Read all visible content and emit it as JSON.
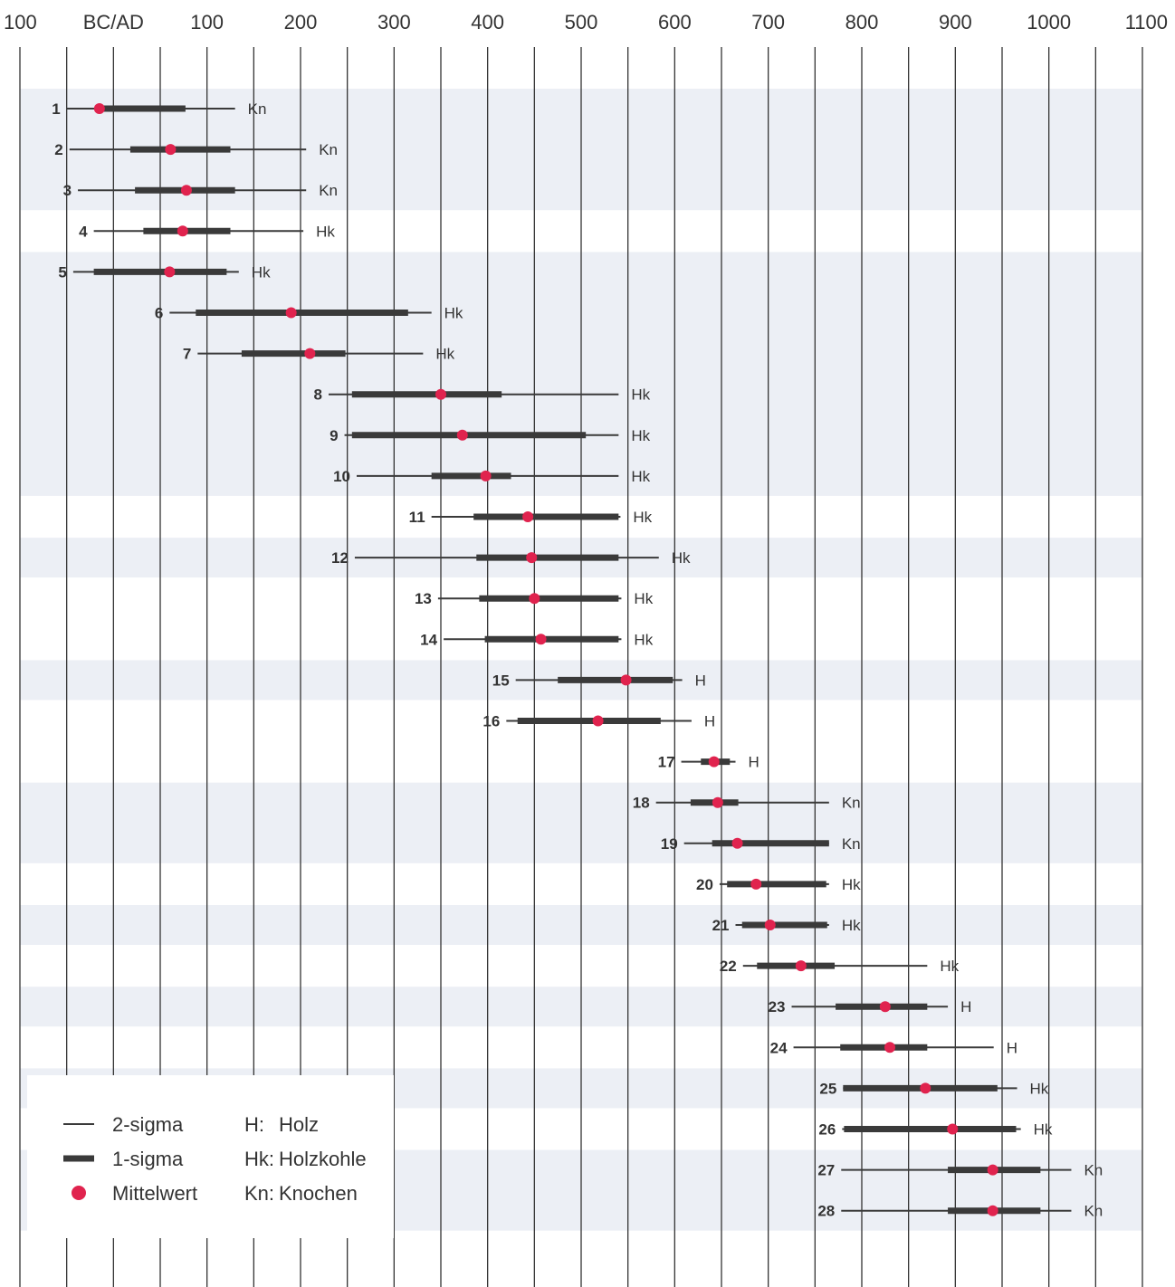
{
  "chart_data": {
    "type": "range",
    "axis": {
      "tick_labels": [
        "100",
        "BC/AD",
        "100",
        "200",
        "300",
        "400",
        "500",
        "600",
        "700",
        "800",
        "900",
        "1000",
        "1100"
      ],
      "tick_values": [
        -100,
        0,
        100,
        200,
        300,
        400,
        500,
        600,
        700,
        800,
        900,
        1000,
        1100
      ],
      "range": [
        -100,
        1100
      ],
      "grid_minor_step": 50
    },
    "colors": {
      "band": "#eceff5",
      "grid": "#333333",
      "range_bar": "#3a3a3a",
      "mean_dot": "#e0234e"
    },
    "rows": [
      {
        "id": "1",
        "sigma2": [
          -50,
          130
        ],
        "sigma1": [
          -12,
          77
        ],
        "mean": -15,
        "material": "Kn"
      },
      {
        "id": "2",
        "sigma2": [
          -47,
          206
        ],
        "sigma1": [
          18,
          125
        ],
        "mean": 61,
        "material": "Kn"
      },
      {
        "id": "3",
        "sigma2": [
          -38,
          206
        ],
        "sigma1": [
          23,
          130
        ],
        "mean": 78,
        "material": "Kn"
      },
      {
        "id": "4",
        "sigma2": [
          -21,
          203
        ],
        "sigma1": [
          32,
          125
        ],
        "mean": 74,
        "material": "Hk"
      },
      {
        "id": "5",
        "sigma2": [
          -43,
          134
        ],
        "sigma1": [
          -21,
          121
        ],
        "mean": 60,
        "material": "Hk"
      },
      {
        "id": "6",
        "sigma2": [
          60,
          340
        ],
        "sigma1": [
          88,
          315
        ],
        "mean": 190,
        "material": "Hk"
      },
      {
        "id": "7",
        "sigma2": [
          90,
          331
        ],
        "sigma1": [
          137,
          248
        ],
        "mean": 210,
        "material": "Hk"
      },
      {
        "id": "8",
        "sigma2": [
          230,
          540
        ],
        "sigma1": [
          255,
          415
        ],
        "mean": 350,
        "material": "Hk"
      },
      {
        "id": "9",
        "sigma2": [
          247,
          540
        ],
        "sigma1": [
          255,
          505
        ],
        "mean": 373,
        "material": "Hk"
      },
      {
        "id": "10",
        "sigma2": [
          260,
          540
        ],
        "sigma1": [
          340,
          425
        ],
        "mean": 398,
        "material": "Hk"
      },
      {
        "id": "11",
        "sigma2": [
          340,
          542
        ],
        "sigma1": [
          385,
          540
        ],
        "mean": 443,
        "material": "Hk"
      },
      {
        "id": "12",
        "sigma2": [
          258,
          583
        ],
        "sigma1": [
          388,
          540
        ],
        "mean": 447,
        "material": "Hk"
      },
      {
        "id": "13",
        "sigma2": [
          347,
          543
        ],
        "sigma1": [
          391,
          540
        ],
        "mean": 450,
        "material": "Hk"
      },
      {
        "id": "14",
        "sigma2": [
          353,
          543
        ],
        "sigma1": [
          397,
          540
        ],
        "mean": 457,
        "material": "Hk"
      },
      {
        "id": "15",
        "sigma2": [
          430,
          608
        ],
        "sigma1": [
          475,
          598
        ],
        "mean": 548,
        "material": "H"
      },
      {
        "id": "16",
        "sigma2": [
          420,
          618
        ],
        "sigma1": [
          432,
          585
        ],
        "mean": 518,
        "material": "H"
      },
      {
        "id": "17",
        "sigma2": [
          607,
          665
        ],
        "sigma1": [
          628,
          659
        ],
        "mean": 642,
        "material": "H"
      },
      {
        "id": "18",
        "sigma2": [
          580,
          765
        ],
        "sigma1": [
          617,
          668
        ],
        "mean": 646,
        "material": "Kn"
      },
      {
        "id": "19",
        "sigma2": [
          610,
          765
        ],
        "sigma1": [
          640,
          765
        ],
        "mean": 667,
        "material": "Kn"
      },
      {
        "id": "20",
        "sigma2": [
          648,
          765
        ],
        "sigma1": [
          656,
          762
        ],
        "mean": 687,
        "material": "Hk"
      },
      {
        "id": "21",
        "sigma2": [
          665,
          765
        ],
        "sigma1": [
          672,
          763
        ],
        "mean": 702,
        "material": "Hk"
      },
      {
        "id": "22",
        "sigma2": [
          673,
          870
        ],
        "sigma1": [
          688,
          771
        ],
        "mean": 735,
        "material": "Hk"
      },
      {
        "id": "23",
        "sigma2": [
          725,
          892
        ],
        "sigma1": [
          772,
          870
        ],
        "mean": 825,
        "material": "H"
      },
      {
        "id": "24",
        "sigma2": [
          727,
          941
        ],
        "sigma1": [
          777,
          870
        ],
        "mean": 830,
        "material": "H"
      },
      {
        "id": "25",
        "sigma2": [
          780,
          966
        ],
        "sigma1": [
          780,
          945
        ],
        "mean": 868,
        "material": "Hk"
      },
      {
        "id": "26",
        "sigma2": [
          779,
          970
        ],
        "sigma1": [
          781,
          965
        ],
        "mean": 897,
        "material": "Hk"
      },
      {
        "id": "27",
        "sigma2": [
          778,
          1024
        ],
        "sigma1": [
          892,
          991
        ],
        "mean": 940,
        "material": "Kn"
      },
      {
        "id": "28",
        "sigma2": [
          778,
          1024
        ],
        "sigma1": [
          892,
          991
        ],
        "mean": 940,
        "material": "Kn"
      }
    ],
    "legend": {
      "sigma2": "2-sigma",
      "sigma1": "1-sigma",
      "mean": "Mittelwert",
      "materials": [
        {
          "key": "H:",
          "name": "Holz"
        },
        {
          "key": "Hk:",
          "name": "Holzkohle"
        },
        {
          "key": "Kn:",
          "name": "Knochen"
        }
      ]
    }
  }
}
